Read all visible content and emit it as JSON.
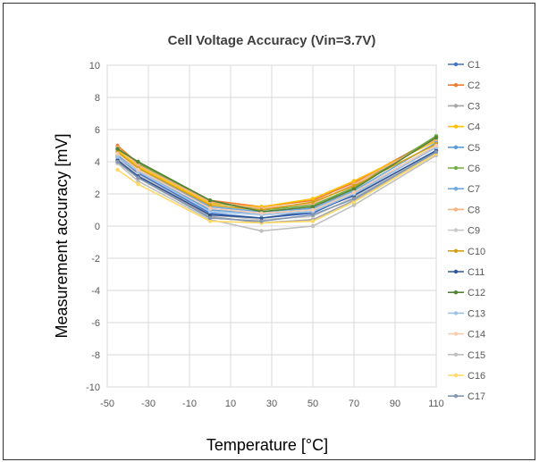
{
  "chart_data": {
    "type": "line",
    "title": "Cell Voltage Accuracy (Vin=3.7V)",
    "xlabel": "Temperature [°C]",
    "ylabel": "Measurement accuracy [mV]",
    "xlim": [
      -50,
      110
    ],
    "ylim": [
      -10,
      10
    ],
    "xticks": [
      -50,
      -30,
      -10,
      10,
      30,
      50,
      70,
      90,
      110
    ],
    "yticks": [
      -10,
      -8,
      -6,
      -4,
      -2,
      0,
      2,
      4,
      6,
      8,
      10
    ],
    "grid": true,
    "legend_position": "right",
    "x": [
      -45,
      -35,
      0,
      25,
      50,
      70,
      110
    ],
    "series": [
      {
        "name": "C1",
        "color": "#4472C4",
        "values": [
          4.3,
          3.3,
          0.8,
          0.5,
          0.8,
          2.0,
          4.9
        ]
      },
      {
        "name": "C2",
        "color": "#ED7D31",
        "values": [
          5.0,
          3.9,
          1.6,
          1.2,
          1.6,
          2.7,
          5.5
        ]
      },
      {
        "name": "C3",
        "color": "#A5A5A5",
        "values": [
          4.0,
          3.0,
          0.6,
          0.2,
          0.4,
          1.6,
          4.6
        ]
      },
      {
        "name": "C4",
        "color": "#FFC000",
        "values": [
          4.7,
          3.7,
          1.4,
          1.2,
          1.7,
          2.8,
          5.3
        ]
      },
      {
        "name": "C5",
        "color": "#5B9BD5",
        "values": [
          4.4,
          3.5,
          1.0,
          0.8,
          1.0,
          2.1,
          5.0
        ]
      },
      {
        "name": "C6",
        "color": "#70AD47",
        "values": [
          4.8,
          3.9,
          1.5,
          1.0,
          1.3,
          2.4,
          5.6
        ]
      },
      {
        "name": "C7",
        "color": "#6FA8DC",
        "values": [
          4.6,
          3.6,
          1.2,
          0.9,
          1.1,
          2.2,
          5.2
        ]
      },
      {
        "name": "C8",
        "color": "#F4B183",
        "values": [
          4.9,
          3.8,
          1.5,
          1.1,
          1.4,
          2.6,
          5.4
        ]
      },
      {
        "name": "C9",
        "color": "#C9C9C9",
        "values": [
          4.2,
          3.2,
          0.7,
          0.4,
          0.6,
          1.8,
          4.7
        ]
      },
      {
        "name": "C10",
        "color": "#D4A017",
        "values": [
          4.6,
          3.6,
          1.3,
          1.0,
          1.5,
          2.5,
          5.1
        ]
      },
      {
        "name": "C11",
        "color": "#2F5597",
        "values": [
          4.1,
          3.1,
          0.7,
          0.5,
          0.9,
          1.9,
          4.7
        ]
      },
      {
        "name": "C12",
        "color": "#548235",
        "values": [
          4.8,
          4.0,
          1.6,
          0.9,
          1.2,
          2.3,
          5.5
        ]
      },
      {
        "name": "C13",
        "color": "#9DC3E6",
        "values": [
          4.3,
          3.4,
          0.9,
          0.7,
          0.9,
          2.0,
          4.9
        ]
      },
      {
        "name": "C14",
        "color": "#F8CBAD",
        "values": [
          4.5,
          3.5,
          1.1,
          0.8,
          1.0,
          2.1,
          5.0
        ]
      },
      {
        "name": "C15",
        "color": "#BFBFBF",
        "values": [
          3.9,
          2.8,
          0.4,
          -0.3,
          0.0,
          1.3,
          4.4
        ]
      },
      {
        "name": "C16",
        "color": "#FFD966",
        "values": [
          3.5,
          2.6,
          0.3,
          0.2,
          0.3,
          1.5,
          4.5
        ]
      },
      {
        "name": "C17",
        "color": "#8497B0",
        "values": [
          4.0,
          3.0,
          0.5,
          0.3,
          0.7,
          1.7,
          4.6
        ]
      }
    ]
  }
}
